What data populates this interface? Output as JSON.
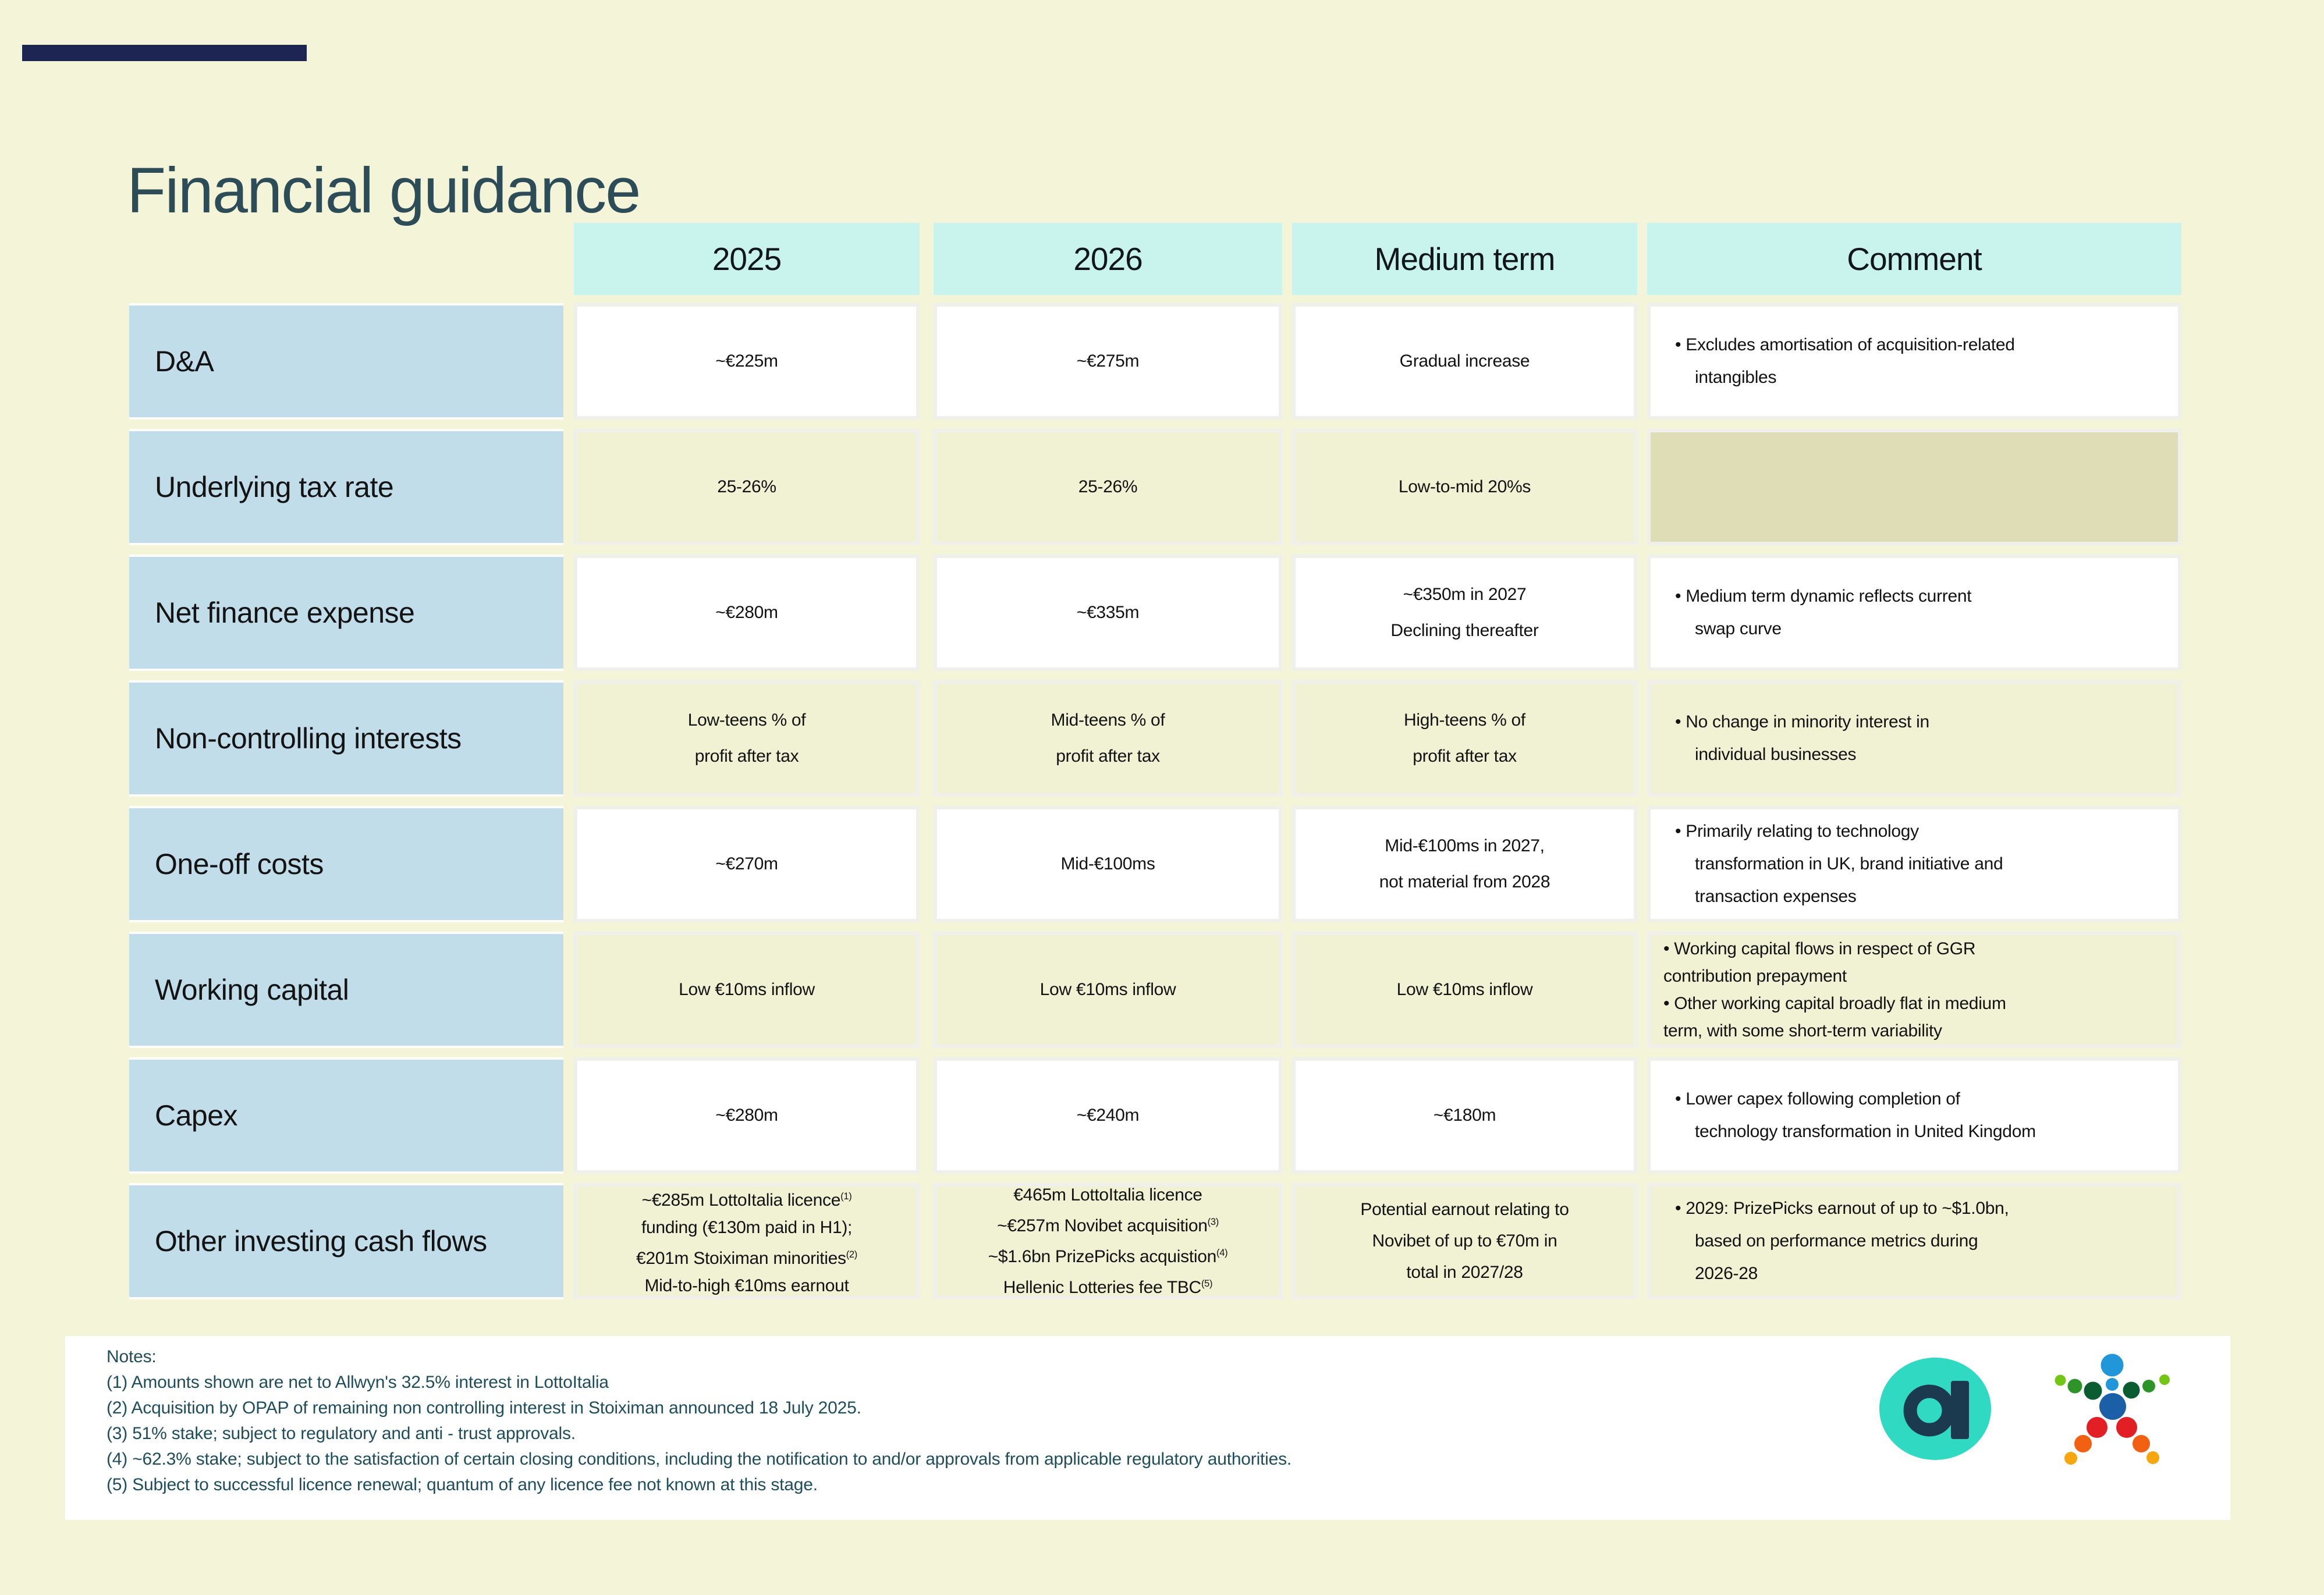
{
  "title": "Financial guidance",
  "table": {
    "columns": [
      "2025",
      "2026",
      "Medium term",
      "Comment"
    ],
    "rows": [
      {
        "label": "D&A",
        "tone": "white",
        "values": [
          {
            "lines": [
              {
                "t": "~€225m"
              }
            ]
          },
          {
            "lines": [
              {
                "t": "~€275m"
              }
            ]
          },
          {
            "lines": [
              {
                "t": "Gradual increase"
              }
            ]
          }
        ],
        "comment": {
          "bullets": [
            {
              "lines": [
                "Excludes amortisation of acquisition-related",
                "intangibles"
              ]
            }
          ]
        }
      },
      {
        "label": "Underlying tax rate",
        "tone": "cream",
        "values": [
          {
            "lines": [
              {
                "t": "25-26%"
              }
            ]
          },
          {
            "lines": [
              {
                "t": "25-26%"
              }
            ]
          },
          {
            "lines": [
              {
                "t": "Low-to-mid 20%s"
              }
            ]
          }
        ],
        "comment": null
      },
      {
        "label": "Net finance expense",
        "tone": "white",
        "values": [
          {
            "lines": [
              {
                "t": "~€280m"
              }
            ]
          },
          {
            "lines": [
              {
                "t": "~€335m"
              }
            ]
          },
          {
            "lines": [
              {
                "t": "~€350m in 2027"
              },
              {
                "t": "Declining thereafter"
              }
            ]
          }
        ],
        "comment": {
          "bullets": [
            {
              "lines": [
                "Medium term dynamic reflects current",
                "swap curve"
              ]
            }
          ]
        }
      },
      {
        "label": "Non-controlling interests",
        "tone": "cream",
        "values": [
          {
            "lines": [
              {
                "t": "Low-teens % of"
              },
              {
                "t": "profit after tax"
              }
            ]
          },
          {
            "lines": [
              {
                "t": "Mid-teens % of"
              },
              {
                "t": "profit after tax"
              }
            ]
          },
          {
            "lines": [
              {
                "t": "High-teens % of"
              },
              {
                "t": "profit after tax"
              }
            ]
          }
        ],
        "comment": {
          "bullets": [
            {
              "lines": [
                "No change in minority interest in",
                "individual businesses"
              ]
            }
          ]
        }
      },
      {
        "label": "One-off costs",
        "tone": "white",
        "values": [
          {
            "lines": [
              {
                "t": "~€270m"
              }
            ]
          },
          {
            "lines": [
              {
                "t": "Mid-€100ms"
              }
            ]
          },
          {
            "lines": [
              {
                "t": "Mid-€100ms in 2027,"
              },
              {
                "t": "not material from 2028"
              }
            ]
          }
        ],
        "comment": {
          "bullets": [
            {
              "lines": [
                "Primarily relating to technology",
                "transformation in UK, brand initiative and",
                "transaction expenses"
              ]
            }
          ]
        }
      },
      {
        "label": "Working capital",
        "tone": "cream",
        "values": [
          {
            "lines": [
              {
                "t": "Low €10ms inflow"
              }
            ]
          },
          {
            "lines": [
              {
                "t": "Low €10ms inflow"
              }
            ]
          },
          {
            "lines": [
              {
                "t": "Low €10ms inflow"
              }
            ]
          }
        ],
        "comment": {
          "compact": true,
          "bullets": [
            {
              "lines": [
                "Working capital flows in respect of GGR",
                "contribution prepayment"
              ]
            },
            {
              "lines": [
                "Other working capital broadly flat in medium",
                "term, with some short-term variability"
              ]
            }
          ]
        }
      },
      {
        "label": "Capex",
        "tone": "white",
        "values": [
          {
            "lines": [
              {
                "t": "~€280m"
              }
            ]
          },
          {
            "lines": [
              {
                "t": "~€240m"
              }
            ]
          },
          {
            "lines": [
              {
                "t": "~€180m"
              }
            ]
          }
        ],
        "comment": {
          "bullets": [
            {
              "lines": [
                "Lower capex following completion of",
                "technology transformation in United Kingdom"
              ]
            }
          ]
        }
      },
      {
        "label": "Other investing cash flows",
        "tone": "cream",
        "values": [
          {
            "lines": [
              {
                "t": "~€285m LottoItalia licence",
                "sup": "(1)"
              },
              {
                "t": "funding (€130m paid in H1);"
              },
              {
                "t": "€201m Stoiximan minorities",
                "sup": "(2)"
              },
              {
                "t": "Mid-to-high €10ms earnout"
              }
            ]
          },
          {
            "lines": [
              {
                "t": "€465m LottoItalia licence"
              },
              {
                "t": "~€257m Novibet acquisition",
                "sup": "(3)"
              },
              {
                "t": "~$1.6bn PrizePicks acquistion",
                "sup": "(4)"
              },
              {
                "t": "Hellenic Lotteries fee TBC",
                "sup": "(5)"
              }
            ]
          },
          {
            "lines": [
              {
                "t": "Potential earnout relating to"
              },
              {
                "t": "Novibet of up to €70m in"
              },
              {
                "t": "total in 2027/28"
              }
            ]
          }
        ],
        "comment": {
          "bullets": [
            {
              "lines": [
                "2029: PrizePicks earnout of up to ~$1.0bn,",
                "based on performance metrics during",
                "2026-28"
              ]
            }
          ]
        }
      }
    ]
  },
  "notes": {
    "title": "Notes:",
    "items": [
      "(1)  Amounts shown are net to Allwyn's 32.5% interest in  LottoItalia",
      "(2)  Acquisition by OPAP of remaining non controlling interest in Stoiximan announced 18 July 2025.",
      "(3)  51% stake; subject to regulatory and anti - trust approvals.",
      "(4)  ~62.3% stake; subject to the satisfaction of certain closing conditions, including the notification to and/or approvals from applicable regulatory authorities.",
      "(5)  Subject to successful licence renewal; quantum of any licence fee not known at this stage."
    ]
  },
  "logos": {
    "allwyn": "allwyn-a-badge",
    "opap": "opap-dots-figure"
  },
  "colors": {
    "background": "#f4f4d9",
    "accent_bar": "#1d2553",
    "title_text": "#2c4c57",
    "header_fill": "#c9f4ee",
    "row_label_fill": "#c1dde9",
    "cream_cell_fill": "#f1f1d4",
    "white_cell_fill": "#ffffff",
    "empty_cell_fill": "#dfddb5",
    "notes_text": "#1e4d5b",
    "allwyn_teal": "#2fd9c2",
    "allwyn_navy": "#1b3a4f",
    "opap_blue": "#2196d8",
    "opap_dark_blue": "#1b5fa8",
    "opap_dark_green": "#0b5c31",
    "opap_green": "#2f9427",
    "opap_light_green": "#74c614",
    "opap_red": "#e31f26",
    "opap_orange": "#f26012",
    "opap_amber": "#f7a60d"
  }
}
